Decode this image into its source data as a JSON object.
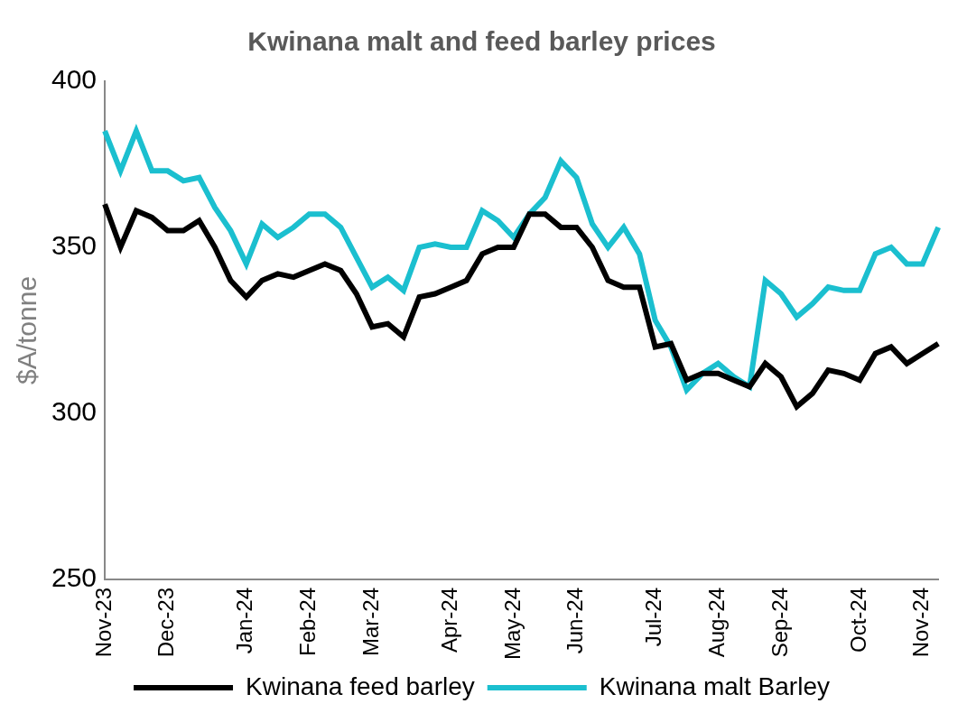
{
  "chart_data": {
    "type": "line",
    "title": "Kwinana malt and feed barley prices",
    "y_label": "$A/tonne",
    "categories": [
      "Nov-23",
      null,
      null,
      null,
      "Dec-23",
      null,
      null,
      null,
      null,
      "Jan-24",
      null,
      null,
      null,
      "Feb-24",
      null,
      null,
      null,
      "Mar-24",
      null,
      null,
      null,
      null,
      "Apr-24",
      null,
      null,
      null,
      "May-24",
      null,
      null,
      null,
      "Jun-24",
      null,
      null,
      null,
      null,
      "Jul-24",
      null,
      null,
      null,
      "Aug-24",
      null,
      null,
      null,
      "Sep-24",
      null,
      null,
      null,
      null,
      "Oct-24",
      null,
      null,
      null,
      "Nov-24",
      null
    ],
    "series": [
      {
        "name": "Kwinana feed barley",
        "color": "#000000",
        "values": [
          363,
          350,
          361,
          359,
          355,
          355,
          358,
          350,
          340,
          335,
          340,
          342,
          341,
          343,
          345,
          343,
          336,
          326,
          327,
          323,
          335,
          336,
          338,
          340,
          348,
          350,
          350,
          360,
          360,
          356,
          356,
          350,
          340,
          338,
          338,
          320,
          321,
          310,
          312,
          312,
          310,
          308,
          315,
          311,
          302,
          306,
          313,
          312,
          310,
          318,
          320,
          315,
          318,
          321
        ]
      },
      {
        "name": "Kwinana malt Barley",
        "color": "#1BBFCF",
        "values": [
          385,
          373,
          385,
          373,
          373,
          370,
          371,
          362,
          355,
          345,
          357,
          353,
          356,
          360,
          360,
          356,
          347,
          338,
          341,
          337,
          350,
          351,
          350,
          350,
          361,
          358,
          353,
          360,
          365,
          376,
          371,
          357,
          350,
          356,
          348,
          328,
          320,
          307,
          312,
          315,
          311,
          308,
          340,
          336,
          329,
          333,
          338,
          337,
          337,
          348,
          350,
          345,
          345,
          356
        ]
      }
    ],
    "ylim": [
      250,
      400
    ],
    "yticks": [
      250,
      300,
      350,
      400
    ],
    "grid": false,
    "legend": "bottom"
  }
}
